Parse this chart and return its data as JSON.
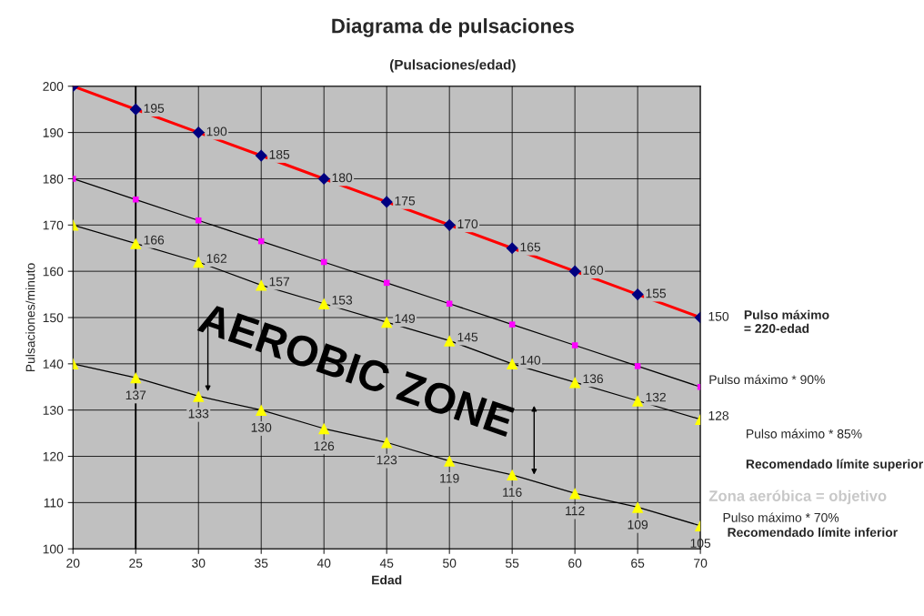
{
  "chart_data": {
    "type": "line",
    "title": "Diagrama de pulsaciones",
    "subtitle": "(Pulsaciones/edad)",
    "xlabel": "Edad",
    "ylabel": "Pulsaciones/minuto",
    "x": [
      20,
      25,
      30,
      35,
      40,
      45,
      50,
      55,
      60,
      65,
      70
    ],
    "series": [
      {
        "color": "#000080",
        "marker": "diamond",
        "values": [
          200,
          195,
          190,
          185,
          180,
          175,
          170,
          165,
          160,
          155,
          150
        ],
        "value_labels": [
          null,
          "195",
          "190",
          "185",
          "180",
          "175",
          "170",
          "165",
          "160",
          "155",
          "150"
        ]
      },
      {
        "color": "#ff00ff",
        "marker": "square",
        "values": [
          180,
          175.5,
          171,
          166.5,
          162,
          157.5,
          153,
          148.5,
          144,
          139.5,
          135
        ]
      },
      {
        "color": "#ffff00",
        "marker": "triangle",
        "values": [
          170,
          166,
          162,
          157,
          153,
          149,
          145,
          140,
          136,
          132,
          128
        ],
        "value_labels": [
          null,
          "166",
          "162",
          "157",
          "153",
          "149",
          "145",
          "140",
          "136",
          "132",
          "128"
        ]
      },
      {
        "color": "#ffff00",
        "marker": "triangle",
        "values": [
          140,
          137,
          133,
          130,
          126,
          123,
          119,
          116,
          112,
          109,
          105
        ],
        "value_labels": [
          null,
          "137",
          "133",
          "130",
          "126",
          "123",
          "119",
          "116",
          "112",
          "109",
          "105"
        ]
      }
    ],
    "xlim": [
      20,
      70
    ],
    "ylim": [
      100,
      200
    ],
    "xticks": [
      20,
      25,
      30,
      35,
      40,
      45,
      50,
      55,
      60,
      65,
      70
    ],
    "yticks": [
      100,
      110,
      120,
      130,
      140,
      150,
      160,
      170,
      180,
      190,
      200
    ],
    "grid": true,
    "legend": false,
    "ref_lines": [
      {
        "axis": "x",
        "value": 25,
        "color": "#000000"
      }
    ],
    "annotations": [
      "Pulso máximo\n= 220-edad",
      "Pulso máximo * 90%",
      "Pulso máximo * 85%",
      "Recomendado límite superior",
      "Zona aeróbica = objetivo",
      "Pulso máximo * 70%",
      "Recomendado límite inferior",
      "AEROBIC ZONE"
    ]
  }
}
